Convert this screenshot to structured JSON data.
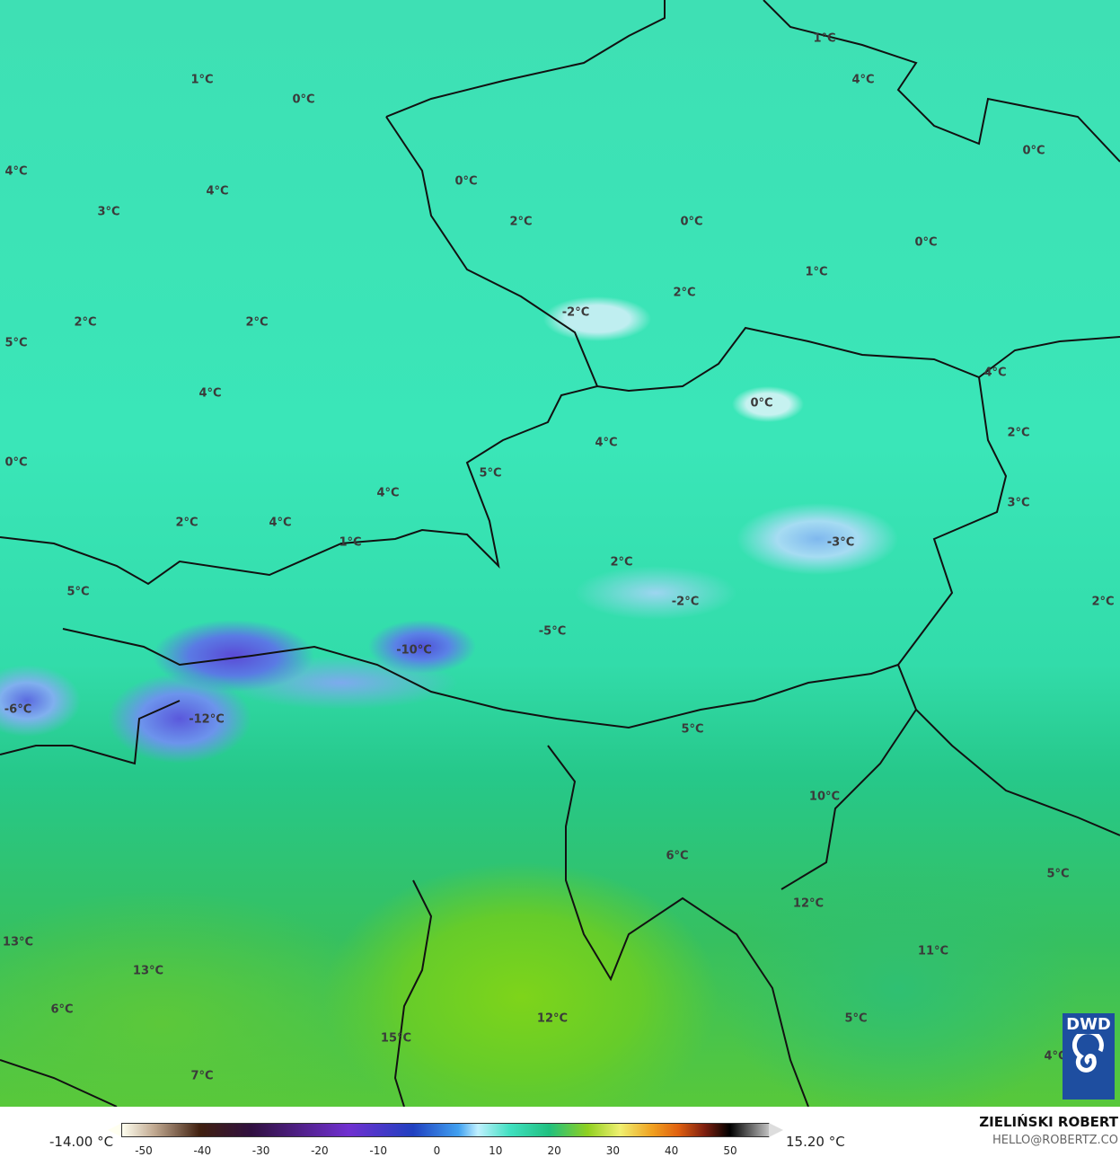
{
  "map": {
    "temperature_labels": [
      "1°C",
      "0°C",
      "1°C",
      "4°C",
      "0°C",
      "4°C",
      "4°C",
      "3°C",
      "0°C",
      "2°C",
      "0°C",
      "0°C",
      "1°C",
      "2°C",
      "-2°C",
      "2°C",
      "2°C",
      "5°C",
      "4°C",
      "0°C",
      "4°C",
      "4°C",
      "2°C",
      "0°C",
      "5°C",
      "4°C",
      "3°C",
      "2°C",
      "4°C",
      "1°C",
      "-3°C",
      "2°C",
      "5°C",
      "-2°C",
      "2°C",
      "-5°C",
      "-10°C",
      "-6°C",
      "-12°C",
      "5°C",
      "10°C",
      "6°C",
      "5°C",
      "12°C",
      "13°C",
      "11°C",
      "13°C",
      "6°C",
      "12°C",
      "5°C",
      "15°C",
      "4°C",
      "7°C"
    ]
  },
  "legend": {
    "min": "-14.00 °C",
    "max": "15.20 °C",
    "ticks": [
      "-50",
      "-40",
      "-30",
      "-20",
      "-10",
      "0",
      "10",
      "20",
      "30",
      "40",
      "50"
    ]
  },
  "credit": {
    "name": "ZIELIŃSKI ROBERT",
    "email": "HELLO@ROBERTZ.CO"
  },
  "logo": {
    "text": "DWD",
    "color": "#1e4ea0"
  }
}
